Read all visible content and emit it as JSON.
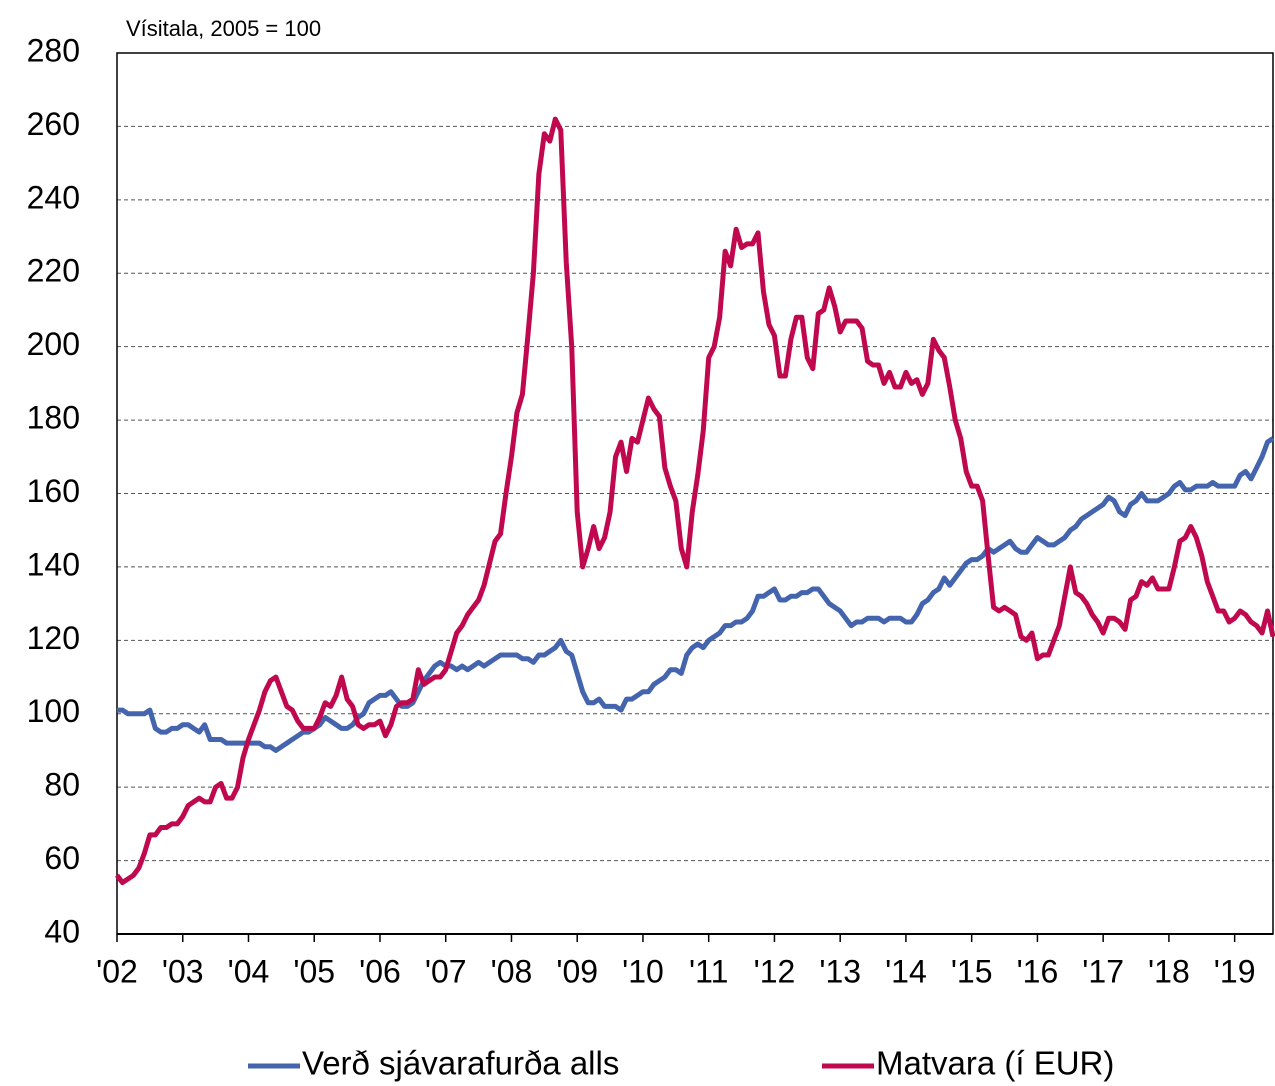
{
  "chart_data": {
    "type": "line",
    "title": "Vísitala, 2005 = 100",
    "categories": [
      "'02",
      null,
      null,
      null,
      null,
      null,
      null,
      null,
      null,
      null,
      null,
      null,
      "'03",
      null,
      null,
      null,
      null,
      null,
      null,
      null,
      null,
      null,
      null,
      null,
      "'04",
      null,
      null,
      null,
      null,
      null,
      null,
      null,
      null,
      null,
      null,
      null,
      "'05",
      null,
      null,
      null,
      null,
      null,
      null,
      null,
      null,
      null,
      null,
      null,
      "'06",
      null,
      null,
      null,
      null,
      null,
      null,
      null,
      null,
      null,
      null,
      null,
      "'07",
      null,
      null,
      null,
      null,
      null,
      null,
      null,
      null,
      null,
      null,
      null,
      "'08",
      null,
      null,
      null,
      null,
      null,
      null,
      null,
      null,
      null,
      null,
      null,
      "'09",
      null,
      null,
      null,
      null,
      null,
      null,
      null,
      null,
      null,
      null,
      null,
      "'10",
      null,
      null,
      null,
      null,
      null,
      null,
      null,
      null,
      null,
      null,
      null,
      "'11",
      null,
      null,
      null,
      null,
      null,
      null,
      null,
      null,
      null,
      null,
      null,
      "'12",
      null,
      null,
      null,
      null,
      null,
      null,
      null,
      null,
      null,
      null,
      null,
      "'13",
      null,
      null,
      null,
      null,
      null,
      null,
      null,
      null,
      null,
      null,
      null,
      "'14",
      null,
      null,
      null,
      null,
      null,
      null,
      null,
      null,
      null,
      null,
      null,
      "'15",
      null,
      null,
      null,
      null,
      null,
      null,
      null,
      null,
      null,
      null,
      null,
      "'16",
      null,
      null,
      null,
      null,
      null,
      null,
      null,
      null,
      null,
      null,
      null,
      "'17",
      null,
      null,
      null,
      null,
      null,
      null,
      null,
      null,
      null,
      null,
      null,
      "'18",
      null,
      null,
      null,
      null,
      null,
      null,
      null,
      null,
      null,
      null,
      null,
      "'19",
      null,
      null,
      null,
      null,
      null,
      null,
      null
    ],
    "series": [
      {
        "name": "Verð sjávarafurða alls",
        "color": "#4464ae",
        "values": [
          101,
          101,
          100,
          100,
          100,
          100,
          101,
          96,
          95,
          95,
          96,
          96,
          97,
          97,
          96,
          95,
          97,
          93,
          93,
          93,
          92,
          92,
          92,
          92,
          92,
          92,
          92,
          91,
          91,
          90,
          91,
          92,
          93,
          94,
          95,
          95,
          96,
          97,
          99,
          98,
          97,
          96,
          96,
          97,
          99,
          100,
          103,
          104,
          105,
          105,
          106,
          104,
          102,
          102,
          103,
          106,
          109,
          111,
          113,
          114,
          113,
          113,
          112,
          113,
          112,
          113,
          114,
          113,
          114,
          115,
          116,
          116,
          116,
          116,
          115,
          115,
          114,
          116,
          116,
          117,
          118,
          120,
          117,
          116,
          111,
          106,
          103,
          103,
          104,
          102,
          102,
          102,
          101,
          104,
          104,
          105,
          106,
          106,
          108,
          109,
          110,
          112,
          112,
          111,
          116,
          118,
          119,
          118,
          120,
          121,
          122,
          124,
          124,
          125,
          125,
          126,
          128,
          132,
          132,
          133,
          134,
          131,
          131,
          132,
          132,
          133,
          133,
          134,
          134,
          132,
          130,
          129,
          128,
          126,
          124,
          125,
          125,
          126,
          126,
          126,
          125,
          126,
          126,
          126,
          125,
          125,
          127,
          130,
          131,
          133,
          134,
          137,
          135,
          137,
          139,
          141,
          142,
          142,
          143,
          145,
          144,
          145,
          146,
          147,
          145,
          144,
          144,
          146,
          148,
          147,
          146,
          146,
          147,
          148,
          150,
          151,
          153,
          154,
          155,
          156,
          157,
          159,
          158,
          155,
          154,
          157,
          158,
          160,
          158,
          158,
          158,
          159,
          160,
          162,
          163,
          161,
          161,
          162,
          162,
          162,
          163,
          162,
          162,
          162,
          162,
          165,
          166,
          164,
          167,
          170,
          174,
          175
        ]
      },
      {
        "name": "Matvara (í EUR)",
        "color": "#c0084f",
        "values": [
          56,
          54,
          55,
          56,
          58,
          62,
          67,
          67,
          69,
          69,
          70,
          70,
          72,
          75,
          76,
          77,
          76,
          76,
          80,
          81,
          77,
          77,
          80,
          88,
          93,
          97,
          101,
          106,
          109,
          110,
          106,
          102,
          101,
          98,
          96,
          96,
          96,
          99,
          103,
          102,
          105,
          110,
          104,
          102,
          97,
          96,
          97,
          97,
          98,
          94,
          97,
          102,
          103,
          103,
          104,
          112,
          108,
          109,
          110,
          110,
          112,
          117,
          122,
          124,
          127,
          129,
          131,
          135,
          141,
          147,
          149,
          160,
          170,
          182,
          187,
          203,
          220,
          247,
          258,
          256,
          262,
          259,
          223,
          200,
          155,
          140,
          145,
          151,
          145,
          148,
          155,
          170,
          174,
          166,
          175,
          174,
          180,
          186,
          183,
          181,
          167,
          162,
          158,
          145,
          140,
          155,
          165,
          177,
          197,
          200,
          208,
          226,
          222,
          232,
          227,
          228,
          228,
          231,
          215,
          206,
          203,
          192,
          192,
          202,
          208,
          208,
          197,
          194,
          209,
          210,
          216,
          211,
          204,
          207,
          207,
          207,
          205,
          196,
          195,
          195,
          190,
          193,
          189,
          189,
          193,
          190,
          191,
          187,
          190,
          202,
          199,
          197,
          189,
          180,
          175,
          166,
          162,
          162,
          158,
          143,
          129,
          128,
          129,
          128,
          127,
          121,
          120,
          122,
          115,
          116,
          116,
          120,
          124,
          132,
          140,
          133,
          132,
          130,
          127,
          125,
          122,
          126,
          126,
          125,
          123,
          131,
          132,
          136,
          135,
          137,
          134,
          134,
          134,
          140,
          147,
          148,
          151,
          148,
          143,
          136,
          132,
          128,
          128,
          125,
          126,
          128,
          127,
          125,
          124,
          122,
          128,
          121
        ]
      }
    ],
    "ylim": [
      40,
      280
    ],
    "yticks": [
      40,
      60,
      80,
      100,
      120,
      140,
      160,
      180,
      200,
      220,
      240,
      260,
      280
    ],
    "grid": true,
    "legend": "bottom"
  }
}
